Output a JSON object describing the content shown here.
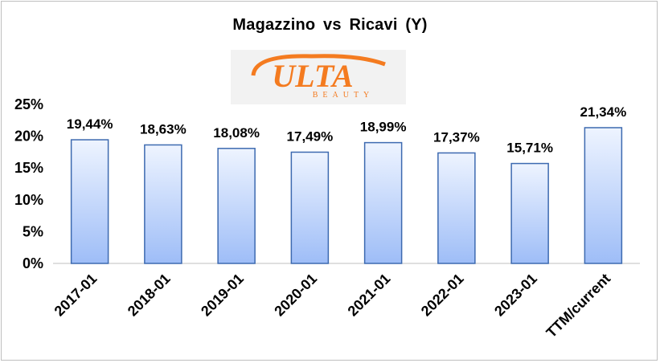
{
  "chart_data": {
    "type": "bar",
    "title": "Magazzino  vs Ricavi  (Y)",
    "categories": [
      "2017-01",
      "2018-01",
      "2019-01",
      "2020-01",
      "2021-01",
      "2022-01",
      "2023-01",
      "TTM/current"
    ],
    "values": [
      19.44,
      18.63,
      18.08,
      17.49,
      18.99,
      17.37,
      15.71,
      21.34
    ],
    "value_labels": [
      "19,44%",
      "18,63%",
      "18,08%",
      "17,49%",
      "18,99%",
      "17,37%",
      "15,71%",
      "21,34%"
    ],
    "y_ticks": [
      0,
      5,
      10,
      15,
      20,
      25
    ],
    "y_tick_labels": [
      "0%",
      "5%",
      "10%",
      "15%",
      "20%",
      "25%"
    ],
    "ylim": [
      0,
      25
    ],
    "grid": false,
    "legend": "none",
    "colors": {
      "bar_top": "#eef4ff",
      "bar_bottom": "#9ebdf7",
      "bar_border": "#3d6ab0",
      "axis": "#bfbfbf"
    }
  },
  "logo": {
    "text": "ULTA",
    "subtext": "BEAUTY",
    "icon": "ulta-beauty-logo",
    "color": "#f47b20"
  }
}
